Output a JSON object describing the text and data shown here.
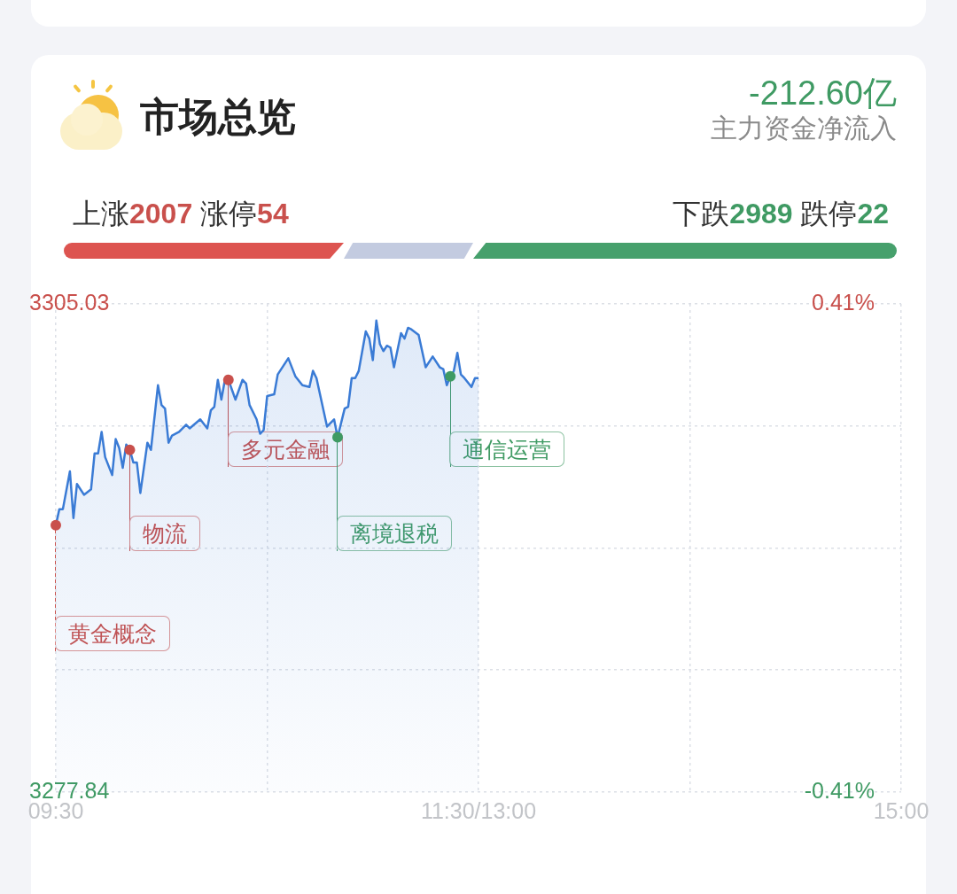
{
  "chart_data": {
    "type": "area",
    "title": "市场总览",
    "annotations": [
      "-212.60亿",
      "主力资金净流入",
      "上涨2007 涨停54",
      "下跌2989 跌停22"
    ],
    "categories": [
      "09:30",
      null,
      null,
      null,
      null,
      null,
      null,
      null,
      null,
      null,
      null,
      null,
      null,
      null,
      null,
      null,
      null,
      null,
      null,
      null,
      null,
      null,
      null,
      null,
      null,
      null,
      null,
      null,
      null,
      null,
      null,
      null,
      null,
      null,
      null,
      null,
      null,
      null,
      null,
      null,
      null,
      null,
      null,
      null,
      null,
      null,
      null,
      null,
      null,
      null,
      null,
      null,
      null,
      null,
      null,
      null,
      null,
      null,
      null,
      null,
      null,
      null,
      null,
      null,
      null,
      null,
      null,
      null,
      null,
      null,
      null,
      null,
      null,
      null,
      null,
      null,
      null,
      null,
      null,
      null,
      null,
      null,
      null,
      null,
      null,
      null,
      null,
      null,
      null,
      null,
      null,
      null,
      null,
      null,
      null,
      null,
      null,
      null,
      null,
      null,
      null,
      null,
      null,
      null,
      null,
      null,
      null,
      null,
      null,
      null,
      null,
      null,
      null,
      null,
      null,
      null,
      null,
      null,
      null,
      null,
      "11:30/13:00",
      null,
      null,
      null,
      null,
      null,
      null,
      null,
      null,
      null,
      null,
      null,
      null,
      null,
      null,
      null,
      null,
      null,
      null,
      null,
      null,
      null,
      null,
      null,
      null,
      null,
      null,
      null,
      null,
      null,
      null,
      null,
      null,
      null,
      null,
      null,
      null,
      null,
      null,
      null,
      null,
      null,
      null,
      null,
      null,
      null,
      null,
      null,
      null,
      null,
      null,
      null,
      null,
      null,
      null,
      null,
      null,
      null,
      null,
      null,
      null,
      null,
      null,
      null,
      null,
      null,
      null,
      null,
      null,
      null,
      null,
      null,
      null,
      null,
      null,
      null,
      null,
      null,
      null,
      null,
      null,
      null,
      null,
      null,
      null,
      null,
      null,
      null,
      null,
      null,
      null,
      null,
      null,
      null,
      null,
      null,
      null,
      null,
      null,
      null,
      null,
      null,
      null,
      null,
      null,
      null,
      null,
      null,
      null,
      null,
      null,
      null,
      null,
      null,
      null,
      null,
      null,
      null,
      null,
      null,
      "15:00"
    ],
    "series": [
      {
        "color": "#3a7bd5",
        "values": [
          3292.7,
          3293.6,
          3293.6,
          null,
          3295.7,
          3293.1,
          3295.0,
          null,
          3294.4,
          null,
          3294.7,
          3296.7,
          3296.7,
          3297.9,
          3296.5,
          null,
          3295.5,
          3297.5,
          3297.0,
          3295.9,
          3297.2,
          3296.9,
          3296.2,
          3296.2,
          3294.5,
          null,
          3297.3,
          3296.9,
          null,
          3300.5,
          3299.4,
          3299.2,
          3297.3,
          3297.7,
          null,
          3297.9,
          null,
          3298.3,
          3298.1,
          null,
          null,
          3298.6,
          null,
          3298.1,
          3299.1,
          3299.3,
          3300.8,
          3299.7,
          3300.8,
          3300.8,
          null,
          3299.7,
          null,
          3300.8,
          3300.6,
          3299.4,
          null,
          3298.6,
          3297.8,
          3298.0,
          3299.9,
          null,
          3300.0,
          3301.1,
          null,
          null,
          3302.0,
          null,
          3301.0,
          null,
          3300.5,
          null,
          3300.4,
          3301.3,
          3300.9,
          null,
          null,
          3298.2,
          null,
          3298.6,
          3297.6,
          null,
          3299.2,
          3299.3,
          3300.9,
          3300.9,
          3301.3,
          null,
          3303.5,
          3303.1,
          3301.9,
          3304.1,
          3302.8,
          3302.4,
          3302.7,
          3302.6,
          3301.5,
          null,
          3303.4,
          3303.1,
          3303.7,
          3303.6,
          null,
          3303.3,
          null,
          3301.5,
          null,
          3302.1,
          null,
          3301.5,
          3301.4,
          3300.5,
          3301.0,
          3301.3,
          3302.3,
          3301.1,
          3300.9,
          null,
          3300.4,
          3300.9,
          3300.9,
          null,
          null,
          null,
          null,
          null,
          null,
          null,
          null,
          null,
          null,
          null,
          null,
          null,
          null,
          null,
          null,
          null,
          null,
          null,
          null,
          null,
          null,
          null,
          null,
          null,
          null,
          null,
          null,
          null,
          null,
          null,
          null,
          null,
          null,
          null,
          null,
          null,
          null,
          null,
          null,
          null,
          null,
          null,
          null,
          null,
          null,
          null,
          null,
          null,
          null,
          null,
          null,
          null,
          null,
          null,
          null,
          null,
          null,
          null,
          null,
          null,
          null,
          null,
          null,
          null,
          null,
          null,
          null,
          null,
          null,
          null,
          null,
          null,
          null,
          null,
          null,
          null,
          null,
          null,
          null,
          null,
          null,
          null,
          null,
          null,
          null,
          null,
          null,
          null,
          null,
          null,
          null,
          null,
          null,
          null,
          null,
          null,
          null,
          null,
          null,
          null,
          null,
          null,
          null,
          null,
          null,
          null,
          null,
          null,
          null,
          null,
          null,
          null,
          null,
          null,
          null,
          null,
          null,
          null,
          null
        ]
      },
      {
        "name": "黄金概念",
        "type": "scatter",
        "marker": "circle",
        "color": "#c9504c",
        "values": [
          3292.7,
          null,
          null,
          null,
          null,
          null,
          null,
          null,
          null,
          null,
          null,
          null,
          null,
          null,
          null,
          null,
          null,
          null,
          null,
          null,
          null,
          null,
          null,
          null,
          null,
          null,
          null,
          null,
          null,
          null,
          null,
          null,
          null,
          null,
          null,
          null,
          null,
          null,
          null,
          null,
          null,
          null,
          null,
          null,
          null,
          null,
          null,
          null,
          null,
          null,
          null,
          null,
          null,
          null,
          null,
          null,
          null,
          null,
          null,
          null,
          null,
          null,
          null,
          null,
          null,
          null,
          null,
          null,
          null,
          null,
          null,
          null,
          null,
          null,
          null,
          null,
          null,
          null,
          null,
          null,
          null,
          null,
          null,
          null,
          null,
          null,
          null,
          null,
          null,
          null,
          null,
          null,
          null,
          null,
          null,
          null,
          null,
          null,
          null,
          null,
          null,
          null,
          null,
          null,
          null,
          null,
          null,
          null,
          null,
          null,
          null,
          null,
          null,
          null,
          null,
          null,
          null,
          null,
          null,
          null,
          null,
          null,
          null,
          null,
          null,
          null,
          null,
          null,
          null,
          null,
          null,
          null,
          null,
          null,
          null,
          null,
          null,
          null,
          null,
          null,
          null,
          null,
          null,
          null,
          null,
          null,
          null,
          null,
          null,
          null,
          null,
          null,
          null,
          null,
          null,
          null,
          null,
          null,
          null,
          null,
          null,
          null,
          null,
          null,
          null,
          null,
          null,
          null,
          null,
          null,
          null,
          null,
          null,
          null,
          null,
          null,
          null,
          null,
          null,
          null,
          null,
          null,
          null,
          null,
          null,
          null,
          null,
          null,
          null,
          null,
          null,
          null,
          null,
          null,
          null,
          null,
          null,
          null,
          null,
          null,
          null,
          null,
          null,
          null,
          null,
          null,
          null,
          null,
          null,
          null,
          null,
          null,
          null,
          null,
          null,
          null,
          null,
          null,
          null,
          null,
          null,
          null,
          null,
          null,
          null,
          null,
          null,
          null,
          null,
          null,
          null,
          null,
          null,
          null,
          null,
          null,
          null,
          null,
          null,
          null,
          null
        ]
      },
      {
        "name": "物流",
        "type": "scatter",
        "marker": "circle",
        "color": "#c9504c",
        "values": [
          null,
          null,
          null,
          null,
          null,
          null,
          null,
          null,
          null,
          null,
          null,
          null,
          null,
          null,
          null,
          null,
          null,
          null,
          null,
          null,
          null,
          3296.9,
          null,
          null,
          null,
          null,
          null,
          null,
          null,
          null,
          null,
          null,
          null,
          null,
          null,
          null,
          null,
          null,
          null,
          null,
          null,
          null,
          null,
          null,
          null,
          null,
          null,
          null,
          null,
          null,
          null,
          null,
          null,
          null,
          null,
          null,
          null,
          null,
          null,
          null,
          null,
          null,
          null,
          null,
          null,
          null,
          null,
          null,
          null,
          null,
          null,
          null,
          null,
          null,
          null,
          null,
          null,
          null,
          null,
          null,
          null,
          null,
          null,
          null,
          null,
          null,
          null,
          null,
          null,
          null,
          null,
          null,
          null,
          null,
          null,
          null,
          null,
          null,
          null,
          null,
          null,
          null,
          null,
          null,
          null,
          null,
          null,
          null,
          null,
          null,
          null,
          null,
          null,
          null,
          null,
          null,
          null,
          null,
          null,
          null,
          null,
          null,
          null,
          null,
          null,
          null,
          null,
          null,
          null,
          null,
          null,
          null,
          null,
          null,
          null,
          null,
          null,
          null,
          null,
          null,
          null,
          null,
          null,
          null,
          null,
          null,
          null,
          null,
          null,
          null,
          null,
          null,
          null,
          null,
          null,
          null,
          null,
          null,
          null,
          null,
          null,
          null,
          null,
          null,
          null,
          null,
          null,
          null,
          null,
          null,
          null,
          null,
          null,
          null,
          null,
          null,
          null,
          null,
          null,
          null,
          null,
          null,
          null,
          null,
          null,
          null,
          null,
          null,
          null,
          null,
          null,
          null,
          null,
          null,
          null,
          null,
          null,
          null,
          null,
          null,
          null,
          null,
          null,
          null,
          null,
          null,
          null,
          null,
          null,
          null,
          null,
          null,
          null,
          null,
          null,
          null,
          null,
          null,
          null,
          null,
          null,
          null,
          null,
          null,
          null,
          null,
          null,
          null,
          null,
          null,
          null,
          null,
          null,
          null,
          null,
          null,
          null,
          null,
          null,
          null,
          null
        ]
      },
      {
        "name": "多元金融",
        "type": "scatter",
        "marker": "circle",
        "color": "#c9504c",
        "values": [
          null,
          null,
          null,
          null,
          null,
          null,
          null,
          null,
          null,
          null,
          null,
          null,
          null,
          null,
          null,
          null,
          null,
          null,
          null,
          null,
          null,
          null,
          null,
          null,
          null,
          null,
          null,
          null,
          null,
          null,
          null,
          null,
          null,
          null,
          null,
          null,
          null,
          null,
          null,
          null,
          null,
          null,
          null,
          null,
          null,
          null,
          null,
          null,
          null,
          3300.8,
          null,
          null,
          null,
          null,
          null,
          null,
          null,
          null,
          null,
          null,
          null,
          null,
          null,
          null,
          null,
          null,
          null,
          null,
          null,
          null,
          null,
          null,
          null,
          null,
          null,
          null,
          null,
          null,
          null,
          null,
          null,
          null,
          null,
          null,
          null,
          null,
          null,
          null,
          null,
          null,
          null,
          null,
          null,
          null,
          null,
          null,
          null,
          null,
          null,
          null,
          null,
          null,
          null,
          null,
          null,
          null,
          null,
          null,
          null,
          null,
          null,
          null,
          null,
          null,
          null,
          null,
          null,
          null,
          null,
          null,
          null,
          null,
          null,
          null,
          null,
          null,
          null,
          null,
          null,
          null,
          null,
          null,
          null,
          null,
          null,
          null,
          null,
          null,
          null,
          null,
          null,
          null,
          null,
          null,
          null,
          null,
          null,
          null,
          null,
          null,
          null,
          null,
          null,
          null,
          null,
          null,
          null,
          null,
          null,
          null,
          null,
          null,
          null,
          null,
          null,
          null,
          null,
          null,
          null,
          null,
          null,
          null,
          null,
          null,
          null,
          null,
          null,
          null,
          null,
          null,
          null,
          null,
          null,
          null,
          null,
          null,
          null,
          null,
          null,
          null,
          null,
          null,
          null,
          null,
          null,
          null,
          null,
          null,
          null,
          null,
          null,
          null,
          null,
          null,
          null,
          null,
          null,
          null,
          null,
          null,
          null,
          null,
          null,
          null,
          null,
          null,
          null,
          null,
          null,
          null,
          null,
          null,
          null,
          null,
          null,
          null,
          null,
          null,
          null,
          null,
          null,
          null,
          null,
          null,
          null,
          null,
          null,
          null,
          null,
          null,
          null
        ]
      },
      {
        "name": "离境退税",
        "type": "scatter",
        "marker": "circle",
        "color": "#3f9a63",
        "values": [
          null,
          null,
          null,
          null,
          null,
          null,
          null,
          null,
          null,
          null,
          null,
          null,
          null,
          null,
          null,
          null,
          null,
          null,
          null,
          null,
          null,
          null,
          null,
          null,
          null,
          null,
          null,
          null,
          null,
          null,
          null,
          null,
          null,
          null,
          null,
          null,
          null,
          null,
          null,
          null,
          null,
          null,
          null,
          null,
          null,
          null,
          null,
          null,
          null,
          null,
          null,
          null,
          null,
          null,
          null,
          null,
          null,
          null,
          null,
          null,
          null,
          null,
          null,
          null,
          null,
          null,
          null,
          null,
          null,
          null,
          null,
          null,
          null,
          null,
          null,
          null,
          null,
          null,
          null,
          null,
          3297.6,
          null,
          null,
          null,
          null,
          null,
          null,
          null,
          null,
          null,
          null,
          null,
          null,
          null,
          null,
          null,
          null,
          null,
          null,
          null,
          null,
          null,
          null,
          null,
          null,
          null,
          null,
          null,
          null,
          null,
          null,
          null,
          null,
          null,
          null,
          null,
          null,
          null,
          null,
          null,
          null,
          null,
          null,
          null,
          null,
          null,
          null,
          null,
          null,
          null,
          null,
          null,
          null,
          null,
          null,
          null,
          null,
          null,
          null,
          null,
          null,
          null,
          null,
          null,
          null,
          null,
          null,
          null,
          null,
          null,
          null,
          null,
          null,
          null,
          null,
          null,
          null,
          null,
          null,
          null,
          null,
          null,
          null,
          null,
          null,
          null,
          null,
          null,
          null,
          null,
          null,
          null,
          null,
          null,
          null,
          null,
          null,
          null,
          null,
          null,
          null,
          null,
          null,
          null,
          null,
          null,
          null,
          null,
          null,
          null,
          null,
          null,
          null,
          null,
          null,
          null,
          null,
          null,
          null,
          null,
          null,
          null,
          null,
          null,
          null,
          null,
          null,
          null,
          null,
          null,
          null,
          null,
          null,
          null,
          null,
          null,
          null,
          null,
          null,
          null,
          null,
          null,
          null,
          null,
          null,
          null,
          null,
          null,
          null,
          null,
          null,
          null,
          null,
          null,
          null,
          null,
          null,
          null,
          null,
          null,
          null
        ]
      },
      {
        "name": "通信运营",
        "type": "scatter",
        "marker": "circle",
        "color": "#3f9a63",
        "values": [
          null,
          null,
          null,
          null,
          null,
          null,
          null,
          null,
          null,
          null,
          null,
          null,
          null,
          null,
          null,
          null,
          null,
          null,
          null,
          null,
          null,
          null,
          null,
          null,
          null,
          null,
          null,
          null,
          null,
          null,
          null,
          null,
          null,
          null,
          null,
          null,
          null,
          null,
          null,
          null,
          null,
          null,
          null,
          null,
          null,
          null,
          null,
          null,
          null,
          null,
          null,
          null,
          null,
          null,
          null,
          null,
          null,
          null,
          null,
          null,
          null,
          null,
          null,
          null,
          null,
          null,
          null,
          null,
          null,
          null,
          null,
          null,
          null,
          null,
          null,
          null,
          null,
          null,
          null,
          null,
          null,
          null,
          null,
          null,
          null,
          null,
          null,
          null,
          null,
          null,
          null,
          null,
          null,
          null,
          null,
          null,
          null,
          null,
          null,
          null,
          null,
          null,
          null,
          null,
          null,
          null,
          null,
          null,
          null,
          null,
          null,
          null,
          3301.0,
          null,
          null,
          null,
          null,
          null,
          null,
          null,
          null,
          null,
          null,
          null,
          null,
          null,
          null,
          null,
          null,
          null,
          null,
          null,
          null,
          null,
          null,
          null,
          null,
          null,
          null,
          null,
          null,
          null,
          null,
          null,
          null,
          null,
          null,
          null,
          null,
          null,
          null,
          null,
          null,
          null,
          null,
          null,
          null,
          null,
          null,
          null,
          null,
          null,
          null,
          null,
          null,
          null,
          null,
          null,
          null,
          null,
          null,
          null,
          null,
          null,
          null,
          null,
          null,
          null,
          null,
          null,
          null,
          null,
          null,
          null,
          null,
          null,
          null,
          null,
          null,
          null,
          null,
          null,
          null,
          null,
          null,
          null,
          null,
          null,
          null,
          null,
          null,
          null,
          null,
          null,
          null,
          null,
          null,
          null,
          null,
          null,
          null,
          null,
          null,
          null,
          null,
          null,
          null,
          null,
          null,
          null,
          null,
          null,
          null,
          null,
          null,
          null,
          null,
          null,
          null,
          null,
          null,
          null,
          null,
          null,
          null,
          null,
          null,
          null,
          null,
          null,
          null
        ]
      }
    ],
    "ylim": [
      3277.84,
      3305.03
    ],
    "yticks": [
      3277.84,
      {
        "value": 3284.64,
        "label": null
      },
      {
        "value": 3291.435,
        "label": null
      },
      {
        "value": 3298.23,
        "label": null
      },
      3305.03
    ],
    "y2lim": [
      -0.41,
      0.41
    ],
    "y2ticks": [
      {
        "value": -0.41,
        "label": "-0.41%"
      },
      {
        "value": 0.41,
        "label": "0.41%"
      }
    ],
    "grid": true,
    "legend": false,
    "marker": "none",
    "line_style": "solid"
  }
}
